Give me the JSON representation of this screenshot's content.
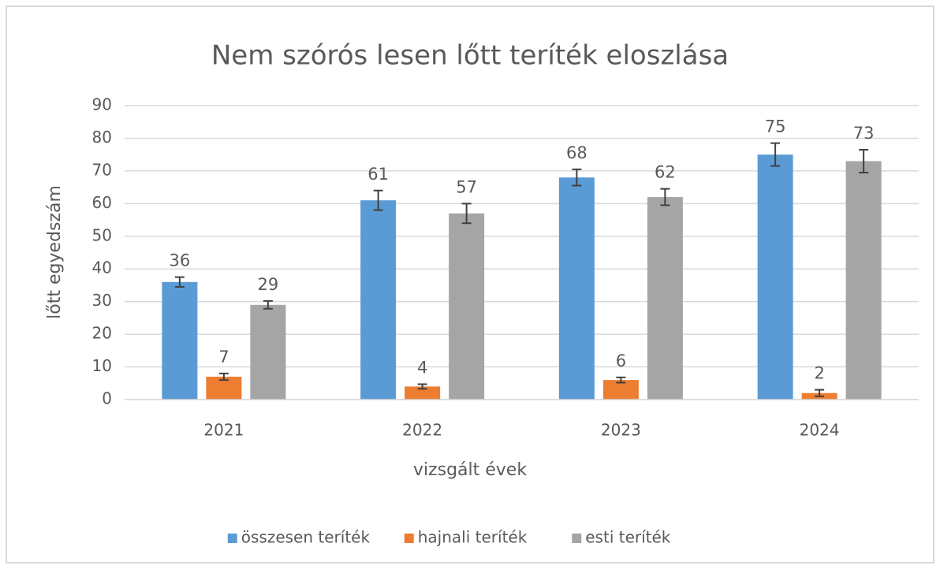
{
  "chart_data": {
    "type": "bar",
    "title": "Nem szórós lesen lőtt teríték eloszlása",
    "x_label": "vizsgált évek",
    "y_label": "lőtt egyedszám",
    "categories": [
      "2021",
      "2022",
      "2023",
      "2024"
    ],
    "series": [
      {
        "name": "összesen teríték",
        "color": "#5b9bd5",
        "values": [
          36,
          61,
          68,
          75
        ],
        "errors": [
          1.5,
          3,
          2.5,
          3.5
        ]
      },
      {
        "name": "hajnali teríték",
        "color": "#ed7d31",
        "values": [
          7,
          4,
          6,
          2
        ],
        "errors": [
          1,
          0.7,
          0.8,
          1
        ]
      },
      {
        "name": "esti teríték",
        "color": "#a5a5a5",
        "values": [
          29,
          57,
          62,
          73
        ],
        "errors": [
          1.2,
          3,
          2.5,
          3.5
        ]
      }
    ],
    "ylim": [
      0,
      90
    ],
    "yticks": [
      0,
      10,
      20,
      30,
      40,
      50,
      60,
      70,
      80,
      90
    ],
    "grid": true,
    "legend": "bottom"
  }
}
